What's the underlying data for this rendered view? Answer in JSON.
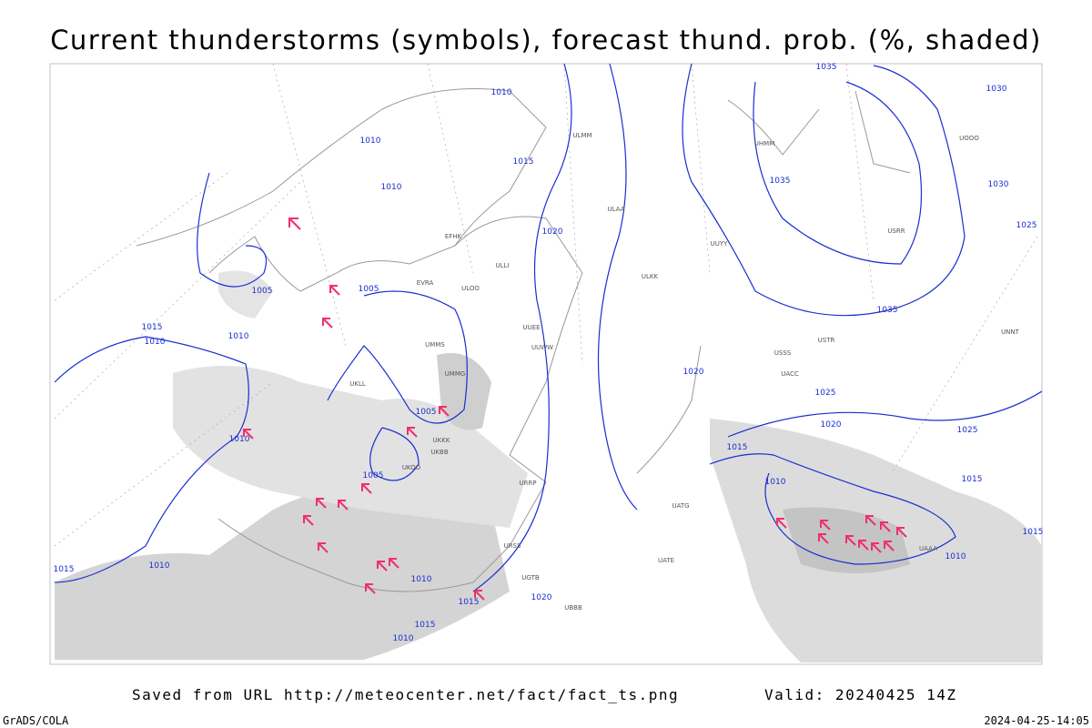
{
  "header": {
    "title": "Current thunderstorms (symbols), forecast thund. prob. (%, shaded)"
  },
  "footer": {
    "source": "Saved from URL http://meteocenter.net/fact/fact_ts.png",
    "valid": "Valid: 20240425 14Z",
    "credit": "GrADS/COLA",
    "timestamp": "2024-04-25-14:05"
  },
  "isobar_labels": [
    "1010",
    "1010",
    "1015",
    "1010",
    "1020",
    "1005",
    "1005",
    "1015",
    "1010",
    "1010",
    "1005",
    "1010",
    "1005",
    "1015",
    "1010",
    "1010",
    "1015",
    "1020",
    "1015",
    "1010",
    "1035",
    "1030",
    "1035",
    "1030",
    "1025",
    "1035",
    "1025",
    "1020",
    "1025",
    "1015",
    "1010",
    "1015",
    "1015",
    "1010",
    "1020"
  ],
  "stations": [
    "ULMM",
    "ULAA",
    "EFHK",
    "ULLI",
    "ULOO",
    "EVRA",
    "UUEE",
    "UUWW",
    "UMMS",
    "UMMG",
    "UKKK",
    "UKBB",
    "UKLL",
    "UKOO",
    "URRP",
    "URSS",
    "UGTB",
    "UBBB",
    "UATG",
    "UATE",
    "UAAA",
    "UACC",
    "USSS",
    "USTR",
    "UNNT",
    "UUYY",
    "ULKK",
    "USRR",
    "UHMM",
    "UOOO"
  ]
}
